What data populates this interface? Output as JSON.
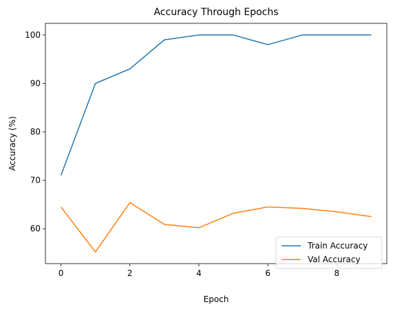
{
  "chart_data": {
    "type": "line",
    "title": "Accuracy Through Epochs",
    "xlabel": "Epoch",
    "ylabel": "Accuracy (%)",
    "x": [
      0,
      1,
      2,
      3,
      4,
      5,
      6,
      7,
      8,
      9
    ],
    "xlim": [
      -0.45,
      9.45
    ],
    "ylim": [
      52.8,
      102.4
    ],
    "xticks": [
      0,
      2,
      4,
      6,
      8
    ],
    "yticks": [
      60,
      70,
      80,
      90,
      100
    ],
    "grid": false,
    "legend_position": "lower-right",
    "series": [
      {
        "name": "Train Accuracy",
        "color": "#1f77b4",
        "values": [
          71.0,
          90.0,
          93.0,
          99.0,
          100.0,
          100.0,
          98.0,
          100.0,
          100.0,
          100.0
        ]
      },
      {
        "name": "Val Accuracy",
        "color": "#ff7f0e",
        "values": [
          64.5,
          55.2,
          65.4,
          60.9,
          60.2,
          63.2,
          64.5,
          64.2,
          63.5,
          62.5
        ]
      }
    ]
  }
}
